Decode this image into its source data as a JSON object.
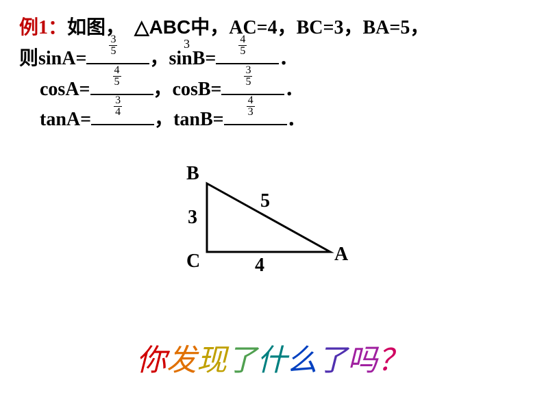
{
  "problem": {
    "example_label": "例1：",
    "line1_prefix": "如图，",
    "triangle": "△ABC中，",
    "givens": "AC=4，BC=3，BA=5，",
    "floating_3": "3",
    "line2_prefix": "则sinA=",
    "comma": "，",
    "sinB": "sinB=",
    "period": "．",
    "cosA": "cosA=",
    "cosB": "cosB=",
    "tanA": "tanA=",
    "tanB": "tanB=",
    "answers": {
      "sinA": {
        "num": "3",
        "den": "5"
      },
      "sinB": {
        "num": "4",
        "den": "5"
      },
      "cosA": {
        "num": "4",
        "den": "5"
      },
      "cosB": {
        "num": "3",
        "den": "5"
      },
      "tanA": {
        "num": "3",
        "den": "4"
      },
      "tanB": {
        "num": "4",
        "den": "3"
      }
    }
  },
  "diagram": {
    "B": "B",
    "C": "C",
    "A": "A",
    "side_bc": "3",
    "side_ca": "4",
    "side_ab": "5"
  },
  "rainbow": {
    "chars": [
      {
        "t": "你",
        "color": "#d00000"
      },
      {
        "t": "发",
        "color": "#e07000"
      },
      {
        "t": "现",
        "color": "#c0a000"
      },
      {
        "t": "了",
        "color": "#50a050"
      },
      {
        "t": "什",
        "color": "#008080"
      },
      {
        "t": "么",
        "color": "#0040c0"
      },
      {
        "t": "了",
        "color": "#5030b0"
      },
      {
        "t": "吗",
        "color": "#a020a0"
      },
      {
        "t": "？",
        "color": "#d00060"
      }
    ]
  },
  "style": {
    "triangle_stroke": "#000000",
    "triangle_stroke_width": 3
  }
}
